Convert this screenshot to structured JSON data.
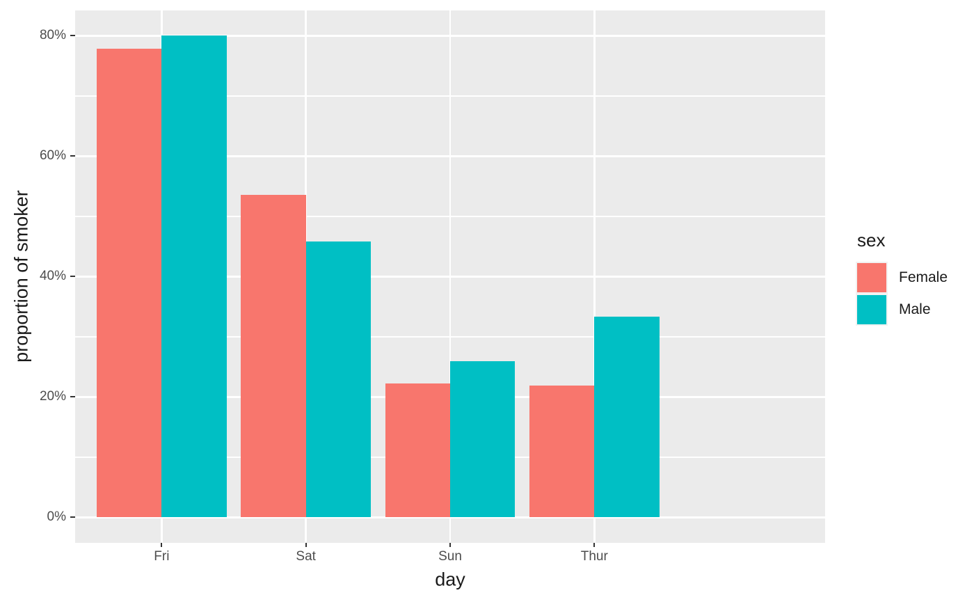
{
  "chart_data": {
    "type": "bar",
    "subtype": "grouped-dodged",
    "title": "",
    "xlabel": "day",
    "ylabel": "proportion of smoker",
    "categories": [
      "Fri",
      "Sat",
      "Sun",
      "Thur"
    ],
    "series": [
      {
        "name": "Female",
        "color": "#F8766D",
        "values": [
          0.7778,
          0.5357,
          0.2222,
          0.2188
        ]
      },
      {
        "name": "Male",
        "color": "#00BFC4",
        "values": [
          0.8,
          0.4576,
          0.2586,
          0.3333
        ]
      }
    ],
    "y_ticks": {
      "values": [
        0,
        0.2,
        0.4,
        0.6,
        0.8
      ],
      "labels": [
        "0%",
        "20%",
        "40%",
        "60%",
        "80%"
      ]
    },
    "y_minor_ticks": [
      0.1,
      0.3,
      0.5,
      0.7
    ],
    "ylim": [
      -0.042,
      0.842
    ],
    "grid": {
      "major": true,
      "minor": true
    },
    "legend": {
      "title": "sex",
      "position": "right"
    },
    "style": {
      "page_bg": "#FFFFFF",
      "panel_bg": "#EBEBEB",
      "grid_color": "#FFFFFF",
      "tick_mark_color": "#333333",
      "axis_text_color": "#4D4D4D",
      "title_color": "#1A1A1A",
      "legend_key_bg": "#F2F2F2"
    }
  }
}
